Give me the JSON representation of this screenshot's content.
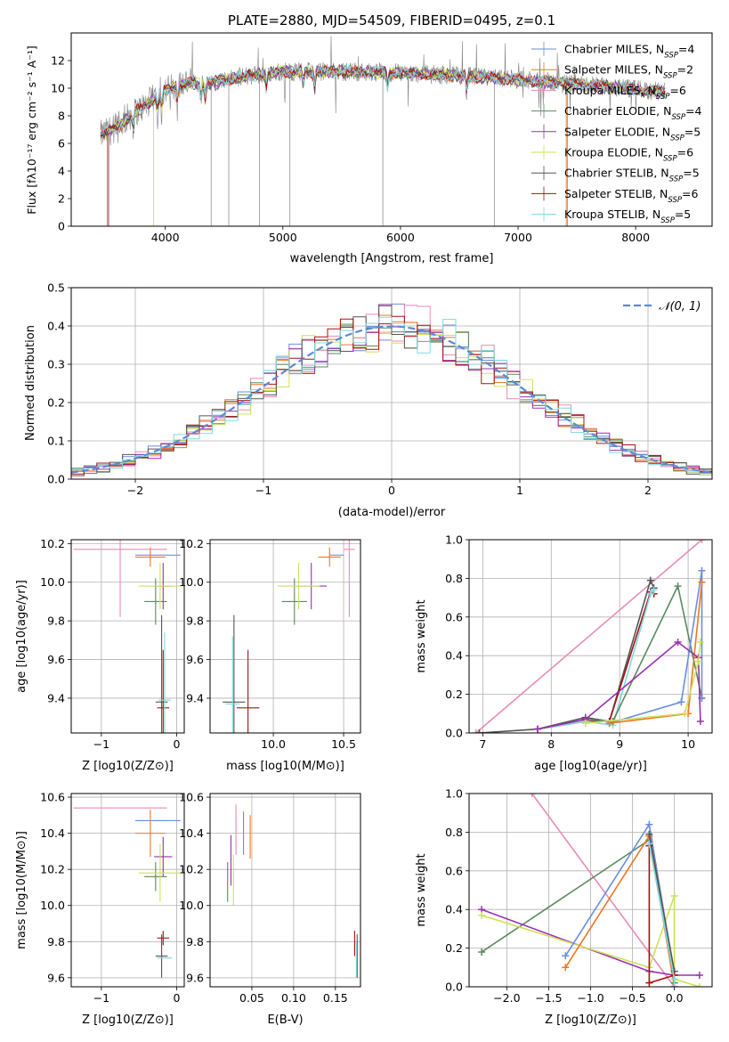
{
  "figure_title": "PLATE=2880, MJD=54509, FIBERID=0495, z=0.1",
  "colors": {
    "Chabrier MILES": "#6a8ede",
    "Salpeter MILES": "#ee7722",
    "Kroupa MILES": "#e98ab8",
    "Chabrier ELODIE": "#5b8a60",
    "Salpeter ELODIE": "#9b30b0",
    "Kroupa ELODIE": "#cfe05a",
    "Chabrier STELIB": "#555555",
    "Salpeter STELIB": "#aa1111",
    "Kroupa STELIB": "#80d8e0",
    "data": "#808080",
    "gauss": "#5b8ad8"
  },
  "chart_data": [
    {
      "id": "spectrum",
      "type": "line",
      "xlabel": "wavelength [Angstrom, rest frame]",
      "ylabel": "Flux [f_λ 10^-17 erg cm^-2 s^-1 A^-1]",
      "xlim": [
        3200,
        8650
      ],
      "ylim": [
        0,
        14
      ],
      "xticks": [
        4000,
        5000,
        6000,
        7000,
        8000
      ],
      "yticks": [
        0,
        2,
        4,
        6,
        8,
        10,
        12
      ],
      "legend_position": "upper right",
      "legend": [
        "Chabrier MILES, N_SSP=4",
        "Salpeter MILES, N_SSP=2",
        "Kroupa MILES, N_SSP=6",
        "Chabrier ELODIE, N_SSP=4",
        "Salpeter ELODIE, N_SSP=5",
        "Kroupa ELODIE, N_SSP=6",
        "Chabrier STELIB, N_SSP=5",
        "Salpeter STELIB, N_SSP=6",
        "Kroupa STELIB, N_SSP=5"
      ],
      "continuum_x": [
        3450,
        3600,
        3700,
        3800,
        3900,
        4000,
        4100,
        4200,
        4300,
        4500,
        4700,
        5000,
        5300,
        5600,
        6000,
        6500,
        7000,
        7500,
        8000,
        8250
      ],
      "continuum_y": [
        6.6,
        7.2,
        8.0,
        8.6,
        9.2,
        9.8,
        10.2,
        10.4,
        10.3,
        10.6,
        10.9,
        11.2,
        11.2,
        11.2,
        11.1,
        10.9,
        10.6,
        10.3,
        9.9,
        9.7
      ]
    },
    {
      "id": "residuals",
      "type": "step",
      "xlabel": "(data-model)/error",
      "ylabel": "Normed distribution",
      "xlim": [
        -2.5,
        2.5
      ],
      "ylim": [
        0,
        0.5
      ],
      "xticks": [
        -2,
        -1,
        0,
        1,
        2
      ],
      "yticks": [
        0.0,
        0.1,
        0.2,
        0.3,
        0.4,
        0.5
      ],
      "legend": "N(0,1)",
      "legend_position": "upper right",
      "bin_width": 0.1
    },
    {
      "id": "age_vs_Z",
      "type": "scatter",
      "xlabel": "Z [log10(Z/Z⊙)]",
      "ylabel": "age [log10(age/yr)]",
      "xlim": [
        -1.4,
        0.1
      ],
      "ylim": [
        9.22,
        10.22
      ],
      "xticks": [
        -1,
        0
      ],
      "yticks": [
        9.4,
        9.6,
        9.8,
        10.0,
        10.2
      ],
      "points": [
        {
          "m": "Chabrier MILES",
          "x": -0.25,
          "y": 10.14,
          "xe": 0.3,
          "ye": 0.0
        },
        {
          "m": "Salpeter MILES",
          "x": -0.35,
          "y": 10.13,
          "xe": 0.2,
          "ye": 0.05
        },
        {
          "m": "Kroupa MILES",
          "x": -0.75,
          "y": 10.17,
          "xe": 0.62,
          "ye": 0.35
        },
        {
          "m": "Chabrier ELODIE",
          "x": -0.28,
          "y": 9.9,
          "xe": 0.15,
          "ye": 0.12
        },
        {
          "m": "Salpeter ELODIE",
          "x": -0.18,
          "y": 9.98,
          "xe": 0.12,
          "ye": 0.12
        },
        {
          "m": "Kroupa ELODIE",
          "x": -0.22,
          "y": 9.98,
          "xe": 0.28,
          "ye": 0.12
        },
        {
          "m": "Chabrier STELIB",
          "x": -0.2,
          "y": 9.38,
          "xe": 0.08,
          "ye": 0.45
        },
        {
          "m": "Salpeter STELIB",
          "x": -0.18,
          "y": 9.35,
          "xe": 0.08,
          "ye": 0.3
        },
        {
          "m": "Kroupa STELIB",
          "x": -0.16,
          "y": 9.39,
          "xe": 0.08,
          "ye": 0.35
        }
      ]
    },
    {
      "id": "age_vs_mass",
      "type": "scatter",
      "xlabel": "mass [log10(M/M⊙)]",
      "ylabel": "",
      "xlim": [
        9.55,
        10.62
      ],
      "ylim": [
        9.22,
        10.22
      ],
      "xticks": [
        10.0,
        10.5
      ],
      "yticks": [
        9.4,
        9.6,
        9.8,
        10.0,
        10.2
      ],
      "points": [
        {
          "m": "Chabrier MILES",
          "x": 10.45,
          "y": 10.14,
          "xe": 0.05,
          "ye": 0.0
        },
        {
          "m": "Salpeter MILES",
          "x": 10.4,
          "y": 10.13,
          "xe": 0.08,
          "ye": 0.05
        },
        {
          "m": "Kroupa MILES",
          "x": 10.54,
          "y": 10.17,
          "xe": 0.04,
          "ye": 0.35
        },
        {
          "m": "Chabrier ELODIE",
          "x": 10.15,
          "y": 9.9,
          "xe": 0.09,
          "ye": 0.12
        },
        {
          "m": "Salpeter ELODIE",
          "x": 10.27,
          "y": 9.98,
          "xe": 0.11,
          "ye": 0.12
        },
        {
          "m": "Kroupa ELODIE",
          "x": 10.18,
          "y": 9.98,
          "xe": 0.15,
          "ye": 0.12
        },
        {
          "m": "Chabrier STELIB",
          "x": 9.72,
          "y": 9.38,
          "xe": 0.08,
          "ye": 0.45
        },
        {
          "m": "Salpeter STELIB",
          "x": 9.82,
          "y": 9.35,
          "xe": 0.08,
          "ye": 0.3
        },
        {
          "m": "Kroupa STELIB",
          "x": 9.71,
          "y": 9.37,
          "xe": 0.05,
          "ye": 0.35
        }
      ]
    },
    {
      "id": "weight_vs_age",
      "type": "line",
      "xlabel": "age [log10(age/yr)]",
      "ylabel": "mass weight",
      "xlim": [
        6.8,
        10.35
      ],
      "ylim": [
        0,
        1.0
      ],
      "xticks": [
        7,
        8,
        9,
        10
      ],
      "yticks": [
        0.0,
        0.2,
        0.4,
        0.6,
        0.8,
        1.0
      ],
      "series": [
        {
          "m": "Kroupa MILES",
          "x": [
            6.9,
            10.2
          ],
          "y": [
            0.0,
            1.0
          ]
        },
        {
          "m": "Chabrier STELIB",
          "x": [
            6.95,
            7.8,
            8.5,
            8.85,
            9.45,
            9.5
          ],
          "y": [
            0.0,
            0.02,
            0.08,
            0.06,
            0.79,
            0.75
          ]
        },
        {
          "m": "Salpeter STELIB",
          "x": [
            7.8,
            8.5,
            8.85,
            9.45,
            9.5
          ],
          "y": [
            0.02,
            0.06,
            0.06,
            0.73,
            0.72
          ]
        },
        {
          "m": "Kroupa STELIB",
          "x": [
            7.8,
            8.5,
            8.9,
            9.45,
            9.5
          ],
          "y": [
            0.02,
            0.06,
            0.04,
            0.72,
            0.74
          ]
        },
        {
          "m": "Chabrier ELODIE",
          "x": [
            8.5,
            8.9,
            9.85,
            10.2
          ],
          "y": [
            0.07,
            0.06,
            0.76,
            0.18
          ]
        },
        {
          "m": "Chabrier MILES",
          "x": [
            8.85,
            9.9,
            10.2,
            10.2
          ],
          "y": [
            0.05,
            0.16,
            0.84,
            0.18
          ]
        },
        {
          "m": "Salpeter MILES",
          "x": [
            8.85,
            10.0,
            10.2
          ],
          "y": [
            0.05,
            0.1,
            0.78
          ]
        },
        {
          "m": "Salpeter ELODIE",
          "x": [
            7.8,
            8.5,
            9.85,
            10.15,
            10.18
          ],
          "y": [
            0.02,
            0.07,
            0.47,
            0.39,
            0.06
          ]
        },
        {
          "m": "Kroupa ELODIE",
          "x": [
            8.5,
            9.95,
            10.15,
            10.18
          ],
          "y": [
            0.05,
            0.1,
            0.37,
            0.47
          ]
        }
      ]
    },
    {
      "id": "mass_vs_Z",
      "type": "scatter",
      "xlabel": "Z [log10(Z/Z⊙)]",
      "ylabel": "mass [log10(M/M⊙)]",
      "xlim": [
        -1.4,
        0.1
      ],
      "ylim": [
        9.55,
        10.62
      ],
      "xticks": [
        -1,
        0
      ],
      "yticks": [
        9.6,
        9.8,
        10.0,
        10.2,
        10.4,
        10.6
      ],
      "points": [
        {
          "m": "Chabrier MILES",
          "x": -0.25,
          "y": 10.47,
          "xe": 0.3,
          "ye": 0.0
        },
        {
          "m": "Salpeter MILES",
          "x": -0.35,
          "y": 10.4,
          "xe": 0.2,
          "ye": 0.13
        },
        {
          "m": "Kroupa MILES",
          "x": -0.75,
          "y": 10.54,
          "xe": 0.62,
          "ye": 0.0
        },
        {
          "m": "Chabrier ELODIE",
          "x": -0.28,
          "y": 10.16,
          "xe": 0.15,
          "ye": 0.08
        },
        {
          "m": "Salpeter ELODIE",
          "x": -0.18,
          "y": 10.27,
          "xe": 0.12,
          "ye": 0.11
        },
        {
          "m": "Kroupa ELODIE",
          "x": -0.22,
          "y": 10.18,
          "xe": 0.28,
          "ye": 0.16
        },
        {
          "m": "Chabrier STELIB",
          "x": -0.2,
          "y": 9.72,
          "xe": 0.08,
          "ye": 0.12
        },
        {
          "m": "Salpeter STELIB",
          "x": -0.18,
          "y": 9.82,
          "xe": 0.08,
          "ye": 0.04
        },
        {
          "m": "Kroupa STELIB",
          "x": -0.16,
          "y": 9.71,
          "xe": 0.1,
          "ye": 0.0
        }
      ]
    },
    {
      "id": "mass_vs_ebv",
      "type": "scatter",
      "xlabel": "E(B-V)",
      "ylabel": "",
      "xlim": [
        0.0,
        0.18
      ],
      "ylim": [
        9.55,
        10.62
      ],
      "xticks": [
        0.05,
        0.1,
        0.15
      ],
      "yticks": [
        9.6,
        9.8,
        10.0,
        10.2,
        10.4,
        10.6
      ],
      "points": [
        {
          "m": "Chabrier MILES",
          "x": 0.04,
          "y": 10.4,
          "xe": 0.0,
          "ye": 0.12
        },
        {
          "m": "Salpeter MILES",
          "x": 0.048,
          "y": 10.38,
          "xe": 0.0,
          "ye": 0.12
        },
        {
          "m": "Kroupa MILES",
          "x": 0.031,
          "y": 10.42,
          "xe": 0.0,
          "ye": 0.14
        },
        {
          "m": "Chabrier ELODIE",
          "x": 0.021,
          "y": 10.13,
          "xe": 0.0,
          "ye": 0.11
        },
        {
          "m": "Salpeter ELODIE",
          "x": 0.025,
          "y": 10.25,
          "xe": 0.0,
          "ye": 0.14
        },
        {
          "m": "Kroupa ELODIE",
          "x": 0.028,
          "y": 10.14,
          "xe": 0.0,
          "ye": 0.14
        },
        {
          "m": "Chabrier STELIB",
          "x": 0.176,
          "y": 9.72,
          "xe": 0.0,
          "ye": 0.12
        },
        {
          "m": "Salpeter STELIB",
          "x": 0.173,
          "y": 9.79,
          "xe": 0.0,
          "ye": 0.07
        },
        {
          "m": "Kroupa STELIB",
          "x": 0.175,
          "y": 9.7,
          "xe": 0.0,
          "ye": 0.1
        }
      ]
    },
    {
      "id": "weight_vs_Z",
      "type": "line",
      "xlabel": "Z [log10(Z/Z⊙)]",
      "ylabel": "mass weight",
      "xlim": [
        -2.45,
        0.45
      ],
      "ylim": [
        0,
        1.0
      ],
      "xticks": [
        -2.0,
        -1.5,
        -1.0,
        -0.5,
        0.0
      ],
      "yticks": [
        0.0,
        0.2,
        0.4,
        0.6,
        0.8,
        1.0
      ],
      "series": [
        {
          "m": "Kroupa MILES",
          "x": [
            -1.7,
            0.0
          ],
          "y": [
            1.0,
            0.0
          ]
        },
        {
          "m": "Chabrier ELODIE",
          "x": [
            -2.3,
            -0.3,
            0.0
          ],
          "y": [
            0.18,
            0.76,
            0.02
          ]
        },
        {
          "m": "Salpeter ELODIE",
          "x": [
            -2.3,
            -0.3,
            0.0,
            0.3
          ],
          "y": [
            0.4,
            0.08,
            0.06,
            0.06
          ]
        },
        {
          "m": "Kroupa ELODIE",
          "x": [
            -2.3,
            -0.3,
            0.0,
            0.0,
            0.3
          ],
          "y": [
            0.37,
            0.1,
            0.47,
            0.04,
            0.0
          ]
        },
        {
          "m": "Chabrier MILES",
          "x": [
            -1.3,
            -0.3,
            0.0,
            0.0
          ],
          "y": [
            0.16,
            0.84,
            0.06,
            0.0
          ]
        },
        {
          "m": "Salpeter MILES",
          "x": [
            -1.3,
            -0.3,
            0.0
          ],
          "y": [
            0.1,
            0.78,
            0.0
          ]
        },
        {
          "m": "Chabrier STELIB",
          "x": [
            -0.3,
            0.0,
            0.0
          ],
          "y": [
            0.79,
            0.08,
            0.0
          ]
        },
        {
          "m": "Salpeter STELIB",
          "x": [
            -0.3,
            -0.3,
            0.0
          ],
          "y": [
            0.73,
            0.02,
            0.06
          ]
        },
        {
          "m": "Kroupa STELIB",
          "x": [
            -0.3,
            0.0,
            0.0
          ],
          "y": [
            0.74,
            0.04,
            0.0
          ]
        }
      ]
    }
  ]
}
